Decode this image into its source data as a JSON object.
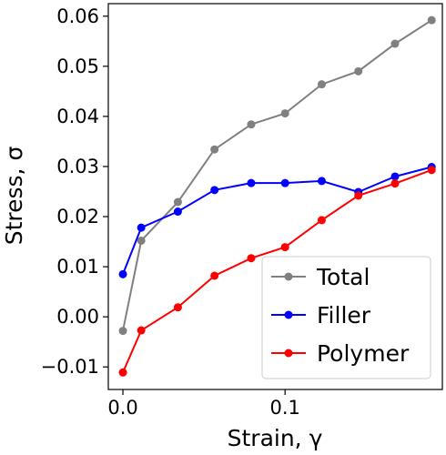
{
  "chart_data": {
    "type": "line",
    "xlabel": "Strain, γ",
    "ylabel": "Stress, σ",
    "x": [
      0.0,
      0.0113,
      0.0339,
      0.0565,
      0.0791,
      0.1,
      0.1226,
      0.1452,
      0.1678,
      0.1904
    ],
    "xlim": [
      -0.009,
      0.197
    ],
    "ylim": [
      -0.0145,
      0.0625
    ],
    "xticks": [
      0.0,
      0.1
    ],
    "xtick_labels": [
      "0.0",
      "0.1"
    ],
    "yticks": [
      -0.01,
      0.0,
      0.01,
      0.02,
      0.03,
      0.04,
      0.05,
      0.06
    ],
    "ytick_labels": [
      "−0.01",
      "0.00",
      "0.01",
      "0.02",
      "0.03",
      "0.04",
      "0.05",
      "0.06"
    ],
    "grid": false,
    "legend_position": "lower-right",
    "series": [
      {
        "name": "Total",
        "color": "#808080",
        "values": [
          -0.0028,
          0.0152,
          0.0229,
          0.0334,
          0.0384,
          0.0406,
          0.0464,
          0.049,
          0.0545,
          0.0592
        ]
      },
      {
        "name": "Filler",
        "color": "#0000ff",
        "values": [
          0.0085,
          0.0178,
          0.021,
          0.0253,
          0.0267,
          0.0267,
          0.0271,
          0.0249,
          0.028,
          0.0299
        ]
      },
      {
        "name": "Polymer",
        "color": "#ff0000",
        "values": [
          -0.0111,
          -0.0027,
          0.0019,
          0.0082,
          0.0117,
          0.0139,
          0.0193,
          0.0242,
          0.0266,
          0.0293
        ]
      }
    ]
  }
}
